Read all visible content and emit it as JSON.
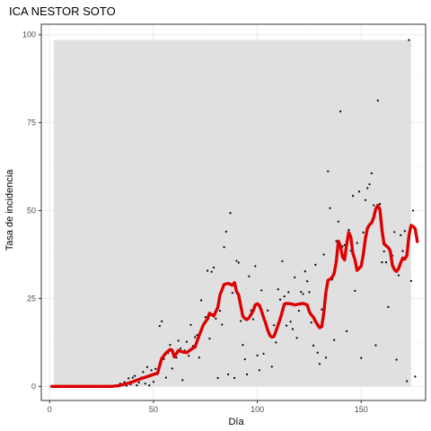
{
  "chart_data": {
    "type": "scatter",
    "title": "ICA NESTOR SOTO",
    "xlabel": "Día",
    "ylabel": "Tasa de incidencia",
    "xlim": [
      -4,
      181
    ],
    "ylim": [
      -4,
      103
    ],
    "x_ticks": [
      0,
      50,
      100,
      150
    ],
    "y_ticks": [
      0,
      25,
      50,
      75,
      100
    ],
    "grid": true,
    "legend": "none",
    "colors": {
      "panel_background": "#ffffff",
      "panel_border": "#333333",
      "grid_major": "#ebebeb",
      "grid_minor": "#f5f5f5",
      "ribbon": "#e0e0e0",
      "points": "#000000",
      "line": "#dd0000"
    },
    "ribbon": {
      "x": [
        2,
        174
      ],
      "ymin": 0,
      "ymax": 98.5
    },
    "series": [
      {
        "type": "scatter",
        "points": [
          [
            1,
            0
          ],
          [
            2,
            0
          ],
          [
            3,
            0
          ],
          [
            4,
            0
          ],
          [
            5,
            0
          ],
          [
            6,
            0
          ],
          [
            7,
            0
          ],
          [
            8,
            0
          ],
          [
            9,
            0
          ],
          [
            10,
            0
          ],
          [
            11,
            0
          ],
          [
            12,
            0
          ],
          [
            13,
            0
          ],
          [
            14,
            0
          ],
          [
            15,
            0
          ],
          [
            16,
            0
          ],
          [
            17,
            0
          ],
          [
            18,
            0
          ],
          [
            19,
            0
          ],
          [
            20,
            0
          ],
          [
            21,
            0
          ],
          [
            22,
            0
          ],
          [
            23,
            0
          ],
          [
            24,
            0
          ],
          [
            25,
            0
          ],
          [
            26,
            0
          ],
          [
            27,
            0
          ],
          [
            28,
            0
          ],
          [
            29,
            0
          ],
          [
            30,
            0
          ],
          [
            31,
            0
          ],
          [
            32,
            0
          ],
          [
            33,
            0
          ],
          [
            34,
            0.8
          ],
          [
            35,
            0.5
          ],
          [
            36,
            1.2
          ],
          [
            37,
            0.2
          ],
          [
            38,
            2.3
          ],
          [
            39,
            0.6
          ],
          [
            40,
            2.5
          ],
          [
            41,
            3.0
          ],
          [
            42,
            0.3
          ],
          [
            43,
            1.1
          ],
          [
            44,
            2.5
          ],
          [
            45,
            4.1
          ],
          [
            46,
            0.8
          ],
          [
            47,
            5.5
          ],
          [
            48,
            0.3
          ],
          [
            49,
            4.6
          ],
          [
            50,
            1.3
          ],
          [
            51,
            5.0
          ],
          [
            52,
            3.5
          ],
          [
            53,
            17.2
          ],
          [
            54,
            18.5
          ],
          [
            55,
            7.8
          ],
          [
            56,
            2.5
          ],
          [
            57,
            9.5
          ],
          [
            58,
            11.8
          ],
          [
            59,
            5.1
          ],
          [
            60,
            9.0
          ],
          [
            61,
            8.2
          ],
          [
            62,
            13.0
          ],
          [
            63,
            10.8
          ],
          [
            64,
            1.8
          ],
          [
            65,
            10.2
          ],
          [
            66,
            12.7
          ],
          [
            67,
            8.7
          ],
          [
            68,
            17.5
          ],
          [
            69,
            11.5
          ],
          [
            70,
            14.0
          ],
          [
            71,
            14.6
          ],
          [
            72,
            8.2
          ],
          [
            73,
            24.5
          ],
          [
            74,
            17.8
          ],
          [
            75,
            19.7
          ],
          [
            76,
            32.9
          ],
          [
            77,
            13.6
          ],
          [
            78,
            32.6
          ],
          [
            79,
            33.8
          ],
          [
            80,
            19.3
          ],
          [
            81,
            2.4
          ],
          [
            82,
            21.5
          ],
          [
            83,
            17.6
          ],
          [
            84,
            39.6
          ],
          [
            85,
            44.0
          ],
          [
            86,
            3.4
          ],
          [
            87,
            49.3
          ],
          [
            88,
            26.6
          ],
          [
            89,
            2.4
          ],
          [
            90,
            35.7
          ],
          [
            91,
            35.2
          ],
          [
            92,
            18.6
          ],
          [
            93,
            11.8
          ],
          [
            94,
            7.7
          ],
          [
            95,
            3.4
          ],
          [
            96,
            31.3
          ],
          [
            97,
            21.6
          ],
          [
            98,
            19.1
          ],
          [
            99,
            34.2
          ],
          [
            100,
            8.8
          ],
          [
            101,
            4.6
          ],
          [
            102,
            27.3
          ],
          [
            103,
            9.3
          ],
          [
            104,
            17.4
          ],
          [
            105,
            21.6
          ],
          [
            106,
            14.9
          ],
          [
            107,
            5.6
          ],
          [
            108,
            17.4
          ],
          [
            109,
            12.5
          ],
          [
            110,
            27.6
          ],
          [
            111,
            24.7
          ],
          [
            112,
            35.6
          ],
          [
            113,
            25.6
          ],
          [
            114,
            17.3
          ],
          [
            115,
            26.8
          ],
          [
            116,
            18.4
          ],
          [
            117,
            16.3
          ],
          [
            118,
            31.0
          ],
          [
            119,
            13.8
          ],
          [
            120,
            21.5
          ],
          [
            121,
            26.9
          ],
          [
            122,
            26.3
          ],
          [
            123,
            32.7
          ],
          [
            124,
            29.9
          ],
          [
            125,
            26.8
          ],
          [
            126,
            18.2
          ],
          [
            127,
            11.6
          ],
          [
            128,
            34.6
          ],
          [
            129,
            9.6
          ],
          [
            130,
            6.4
          ],
          [
            131,
            21.9
          ],
          [
            132,
            37.5
          ],
          [
            133,
            8.2
          ],
          [
            134,
            61.2
          ],
          [
            135,
            50.7
          ],
          [
            136,
            30.4
          ],
          [
            137,
            13.2
          ],
          [
            138,
            41.3
          ],
          [
            139,
            46.9
          ],
          [
            140,
            78.2
          ],
          [
            141,
            39.8
          ],
          [
            142,
            40.2
          ],
          [
            143,
            15.7
          ],
          [
            144,
            44.5
          ],
          [
            145,
            38.6
          ],
          [
            146,
            54.2
          ],
          [
            147,
            27.2
          ],
          [
            148,
            40.8
          ],
          [
            149,
            55.4
          ],
          [
            150,
            8.1
          ],
          [
            151,
            43.8
          ],
          [
            152,
            53.0
          ],
          [
            153,
            56.4
          ],
          [
            154,
            57.5
          ],
          [
            155,
            60.6
          ],
          [
            156,
            51.5
          ],
          [
            157,
            11.7
          ],
          [
            158,
            81.3
          ],
          [
            159,
            51.9
          ],
          [
            160,
            35.3
          ],
          [
            161,
            38.4
          ],
          [
            162,
            35.3
          ],
          [
            163,
            22.6
          ],
          [
            164,
            38.4
          ],
          [
            165,
            37.2
          ],
          [
            166,
            43.9
          ],
          [
            167,
            7.6
          ],
          [
            168,
            31.6
          ],
          [
            169,
            43.0
          ],
          [
            170,
            38.5
          ],
          [
            171,
            44.2
          ],
          [
            172,
            1.5
          ],
          [
            173,
            98.5
          ],
          [
            174,
            30.0
          ],
          [
            175,
            50.0
          ],
          [
            176,
            2.8
          ]
        ]
      },
      {
        "type": "line",
        "points": [
          [
            1,
            0
          ],
          [
            10,
            0
          ],
          [
            20,
            0
          ],
          [
            30,
            0
          ],
          [
            33,
            0.2
          ],
          [
            36,
            0.6
          ],
          [
            40,
            1.3
          ],
          [
            44,
            2.2
          ],
          [
            48,
            3.0
          ],
          [
            50,
            3.4
          ],
          [
            52,
            3.8
          ],
          [
            53,
            6.0
          ],
          [
            54,
            8.0
          ],
          [
            56,
            9.5
          ],
          [
            58,
            10.5
          ],
          [
            59,
            10.3
          ],
          [
            60,
            8.4
          ],
          [
            62,
            10.2
          ],
          [
            64,
            9.8
          ],
          [
            66,
            9.6
          ],
          [
            68,
            10.5
          ],
          [
            70,
            11.2
          ],
          [
            72,
            14.5
          ],
          [
            74,
            17.5
          ],
          [
            76,
            19.2
          ],
          [
            77,
            20.8
          ],
          [
            79,
            20.0
          ],
          [
            81,
            22.5
          ],
          [
            82,
            26.0
          ],
          [
            84,
            29.0
          ],
          [
            86,
            29.3
          ],
          [
            88,
            28.8
          ],
          [
            89,
            29.5
          ],
          [
            90,
            27.0
          ],
          [
            91,
            26.0
          ],
          [
            92,
            23.0
          ],
          [
            93,
            20.0
          ],
          [
            94,
            19.3
          ],
          [
            95,
            19.0
          ],
          [
            96,
            19.5
          ],
          [
            98,
            21.5
          ],
          [
            99,
            23.2
          ],
          [
            100,
            23.5
          ],
          [
            101,
            23.0
          ],
          [
            102,
            21.5
          ],
          [
            103,
            19.6
          ],
          [
            104,
            18.0
          ],
          [
            105,
            16.0
          ],
          [
            106,
            14.5
          ],
          [
            107,
            14.0
          ],
          [
            108,
            14.2
          ],
          [
            109,
            15.8
          ],
          [
            110,
            17.5
          ],
          [
            111,
            19.2
          ],
          [
            112,
            21.3
          ],
          [
            113,
            23.4
          ],
          [
            114,
            23.6
          ],
          [
            116,
            23.5
          ],
          [
            118,
            23.2
          ],
          [
            120,
            23.4
          ],
          [
            122,
            23.6
          ],
          [
            124,
            23.2
          ],
          [
            125,
            21.3
          ],
          [
            126,
            20.3
          ],
          [
            127,
            19.7
          ],
          [
            128,
            18.5
          ],
          [
            129,
            17.5
          ],
          [
            130,
            16.7
          ],
          [
            131,
            17.0
          ],
          [
            132,
            21.0
          ],
          [
            133,
            26.8
          ],
          [
            134,
            30.2
          ],
          [
            135,
            30.5
          ],
          [
            136,
            31.0
          ],
          [
            137,
            32.2
          ],
          [
            138,
            35.5
          ],
          [
            139,
            41.3
          ],
          [
            140,
            40.0
          ],
          [
            141,
            36.8
          ],
          [
            142,
            36.0
          ],
          [
            143,
            40.5
          ],
          [
            144,
            43.8
          ],
          [
            145,
            42.5
          ],
          [
            146,
            37.8
          ],
          [
            147,
            36.0
          ],
          [
            148,
            33.0
          ],
          [
            149,
            33.6
          ],
          [
            150,
            34.2
          ],
          [
            151,
            37.5
          ],
          [
            152,
            42.0
          ],
          [
            153,
            45.0
          ],
          [
            154,
            46.0
          ],
          [
            155,
            46.5
          ],
          [
            156,
            48.0
          ],
          [
            157,
            50.5
          ],
          [
            158,
            51.5
          ],
          [
            159,
            50.3
          ],
          [
            160,
            44.5
          ],
          [
            161,
            40.5
          ],
          [
            162,
            40.0
          ],
          [
            163,
            39.5
          ],
          [
            164,
            38.5
          ],
          [
            165,
            34.5
          ],
          [
            166,
            33.2
          ],
          [
            167,
            32.7
          ],
          [
            168,
            33.5
          ],
          [
            169,
            35.2
          ],
          [
            170,
            36.5
          ],
          [
            171,
            36.2
          ],
          [
            172,
            37.3
          ],
          [
            173,
            43.0
          ],
          [
            174,
            45.8
          ],
          [
            175,
            45.5
          ],
          [
            176,
            44.8
          ],
          [
            177,
            41.2
          ]
        ]
      }
    ]
  }
}
